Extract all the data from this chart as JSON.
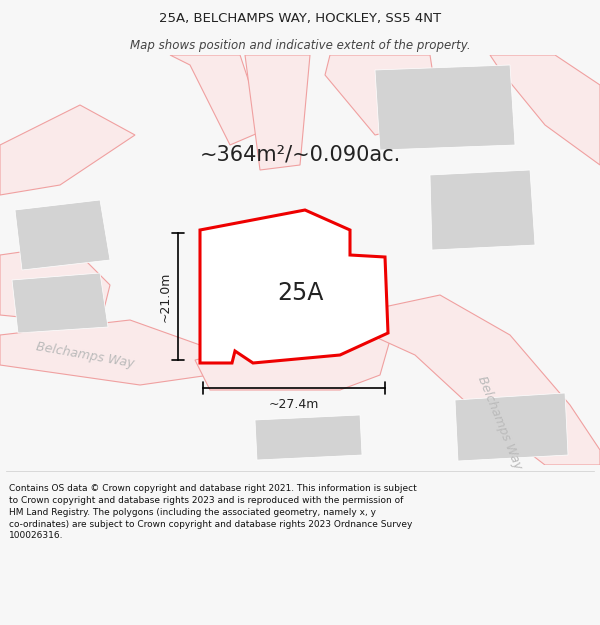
{
  "title": "25A, BELCHAMPS WAY, HOCKLEY, SS5 4NT",
  "subtitle": "Map shows position and indicative extent of the property.",
  "area_text": "~364m²/~0.090ac.",
  "label_25a": "25A",
  "dim_width": "~27.4m",
  "dim_height": "~21.0m",
  "footer_line1": "Contains OS data © Crown copyright and database right 2021. This information is subject",
  "footer_line2": "to Crown copyright and database rights 2023 and is reproduced with the permission of",
  "footer_line3": "HM Land Registry. The polygons (including the associated geometry, namely x, y",
  "footer_line4": "co-ordinates) are subject to Crown copyright and database rights 2023 Ordnance Survey",
  "footer_line5": "100026316.",
  "bg_color": "#f7f7f7",
  "map_bg": "#ffffff",
  "road_color": "#f0a0a0",
  "road_fill": "#faeaea",
  "block_color": "#d3d3d3",
  "property_color": "#ee0000",
  "property_fill": "#ffffff",
  "street_label_color": "#bbbbbb",
  "text_color": "#222222",
  "footer_color": "#111111",
  "title_fontsize": 9.5,
  "subtitle_fontsize": 8.5,
  "area_fontsize": 15,
  "label_fontsize": 17,
  "dim_fontsize": 9,
  "street_fontsize": 9,
  "footer_fontsize": 6.5
}
